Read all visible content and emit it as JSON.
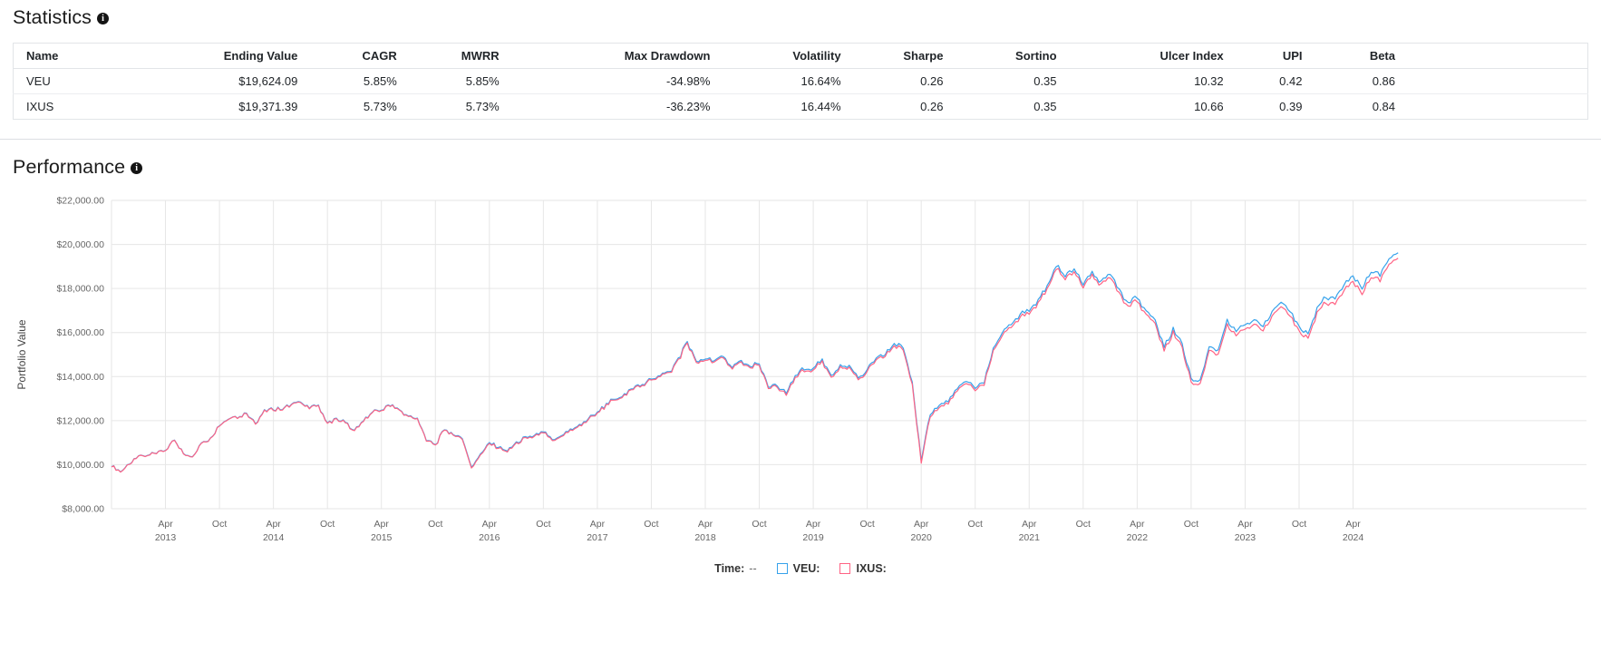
{
  "statistics": {
    "title": "Statistics",
    "table": {
      "headers": [
        "Name",
        "Ending Value",
        "CAGR",
        "MWRR",
        "Max Drawdown",
        "Volatility",
        "Sharpe",
        "Sortino",
        "Ulcer Index",
        "UPI",
        "Beta"
      ],
      "rows": [
        [
          "VEU",
          "$19,624.09",
          "5.85%",
          "5.85%",
          "-34.98%",
          "16.64%",
          "0.26",
          "0.35",
          "10.32",
          "0.42",
          "0.86"
        ],
        [
          "IXUS",
          "$19,371.39",
          "5.73%",
          "5.73%",
          "-36.23%",
          "16.44%",
          "0.26",
          "0.35",
          "10.66",
          "0.39",
          "0.84"
        ]
      ]
    }
  },
  "performance": {
    "title": "Performance",
    "legend": {
      "time_label": "Time:",
      "time_value": "--",
      "series": [
        {
          "label": "VEU:",
          "color": "#36A2EB"
        },
        {
          "label": "IXUS:",
          "color": "#FF6384"
        }
      ]
    }
  },
  "chart_data": {
    "type": "line",
    "title": "",
    "xlabel": "",
    "ylabel": "Portfolio Value",
    "ylim": [
      8000,
      22000
    ],
    "grid": true,
    "legend_position": "bottom",
    "x_start_month": "2012-10",
    "x_end_month": "2024-09",
    "y_tick_labels": [
      "$8,000.00",
      "$10,000.00",
      "$12,000.00",
      "$14,000.00",
      "$16,000.00",
      "$18,000.00",
      "$20,000.00",
      "$22,000.00"
    ],
    "x_ticks": [
      {
        "label": "Apr",
        "year": "2013"
      },
      {
        "label": "Oct",
        "year": ""
      },
      {
        "label": "Apr",
        "year": "2014"
      },
      {
        "label": "Oct",
        "year": ""
      },
      {
        "label": "Apr",
        "year": "2015"
      },
      {
        "label": "Oct",
        "year": ""
      },
      {
        "label": "Apr",
        "year": "2016"
      },
      {
        "label": "Oct",
        "year": ""
      },
      {
        "label": "Apr",
        "year": "2017"
      },
      {
        "label": "Oct",
        "year": ""
      },
      {
        "label": "Apr",
        "year": "2018"
      },
      {
        "label": "Oct",
        "year": ""
      },
      {
        "label": "Apr",
        "year": "2019"
      },
      {
        "label": "Oct",
        "year": ""
      },
      {
        "label": "Apr",
        "year": "2020"
      },
      {
        "label": "Oct",
        "year": ""
      },
      {
        "label": "Apr",
        "year": "2021"
      },
      {
        "label": "Oct",
        "year": ""
      },
      {
        "label": "Apr",
        "year": "2022"
      },
      {
        "label": "Oct",
        "year": ""
      },
      {
        "label": "Apr",
        "year": "2023"
      },
      {
        "label": "Oct",
        "year": ""
      },
      {
        "label": "Apr",
        "year": "2024"
      }
    ],
    "series": [
      {
        "name": "VEU",
        "color": "#36A2EB",
        "values": [
          9950,
          9700,
          10000,
          10400,
          10450,
          10500,
          10650,
          11150,
          10500,
          10400,
          11000,
          11200,
          11800,
          12100,
          12150,
          12300,
          11900,
          12450,
          12500,
          12550,
          12750,
          12800,
          12550,
          12700,
          11900,
          12100,
          11900,
          11600,
          12000,
          12400,
          12500,
          12700,
          12500,
          12200,
          12100,
          11100,
          10900,
          11600,
          11400,
          11200,
          9900,
          10500,
          11000,
          10800,
          10600,
          11000,
          11250,
          11300,
          11500,
          11100,
          11300,
          11600,
          11800,
          12100,
          12350,
          12750,
          13000,
          13200,
          13500,
          13600,
          13900,
          14000,
          14200,
          14800,
          15600,
          14700,
          14800,
          14700,
          14900,
          14400,
          14700,
          14450,
          14600,
          13500,
          13600,
          13250,
          14100,
          14350,
          14400,
          14800,
          14000,
          14550,
          14500,
          13950,
          14300,
          14800,
          15000,
          15500,
          15300,
          13800,
          10150,
          12300,
          12700,
          12900,
          13400,
          13800,
          13500,
          13700,
          15300,
          16000,
          16300,
          16800,
          17000,
          17500,
          18100,
          19050,
          18500,
          18900,
          18200,
          18800,
          18300,
          18700,
          18000,
          17300,
          17600,
          17000,
          16600,
          15300,
          16200,
          15500,
          13900,
          13800,
          15400,
          15200,
          16600,
          16100,
          16400,
          16600,
          16300,
          17000,
          17400,
          16900,
          16300,
          15900,
          17100,
          17600,
          17500,
          18200,
          18600,
          18000,
          18700,
          18600,
          19400,
          19624.09
        ]
      },
      {
        "name": "IXUS",
        "color": "#FF6384",
        "values": [
          9940,
          9690,
          9990,
          10390,
          10440,
          10490,
          10640,
          11140,
          10490,
          10390,
          10990,
          11190,
          11790,
          12090,
          12140,
          12280,
          11880,
          12430,
          12480,
          12530,
          12730,
          12780,
          12530,
          12680,
          11880,
          12080,
          11880,
          11580,
          11980,
          12380,
          12480,
          12680,
          12480,
          12180,
          12080,
          11080,
          10880,
          11580,
          11380,
          11160,
          9860,
          10460,
          10960,
          10760,
          10560,
          10960,
          11210,
          11260,
          11460,
          11060,
          11260,
          11560,
          11760,
          12060,
          12310,
          12710,
          12960,
          13160,
          13460,
          13560,
          13860,
          13960,
          14160,
          14740,
          15540,
          14640,
          14740,
          14640,
          14840,
          14340,
          14640,
          14390,
          14540,
          13440,
          13540,
          13170,
          14020,
          14270,
          14320,
          14720,
          13920,
          14470,
          14420,
          13870,
          14220,
          14720,
          14920,
          15400,
          15200,
          13700,
          10050,
          12200,
          12600,
          12800,
          13300,
          13700,
          13400,
          13600,
          15200,
          15870,
          16170,
          16670,
          16870,
          17370,
          17970,
          18920,
          18370,
          18770,
          18070,
          18670,
          18170,
          18540,
          17840,
          17140,
          17440,
          16840,
          16440,
          15140,
          16040,
          15340,
          13740,
          13640,
          15240,
          15000,
          16400,
          15900,
          16200,
          16400,
          16100,
          16800,
          17200,
          16700,
          16100,
          15700,
          16900,
          17350,
          17250,
          17950,
          18350,
          17750,
          18450,
          18350,
          19150,
          19371.39
        ]
      }
    ]
  }
}
